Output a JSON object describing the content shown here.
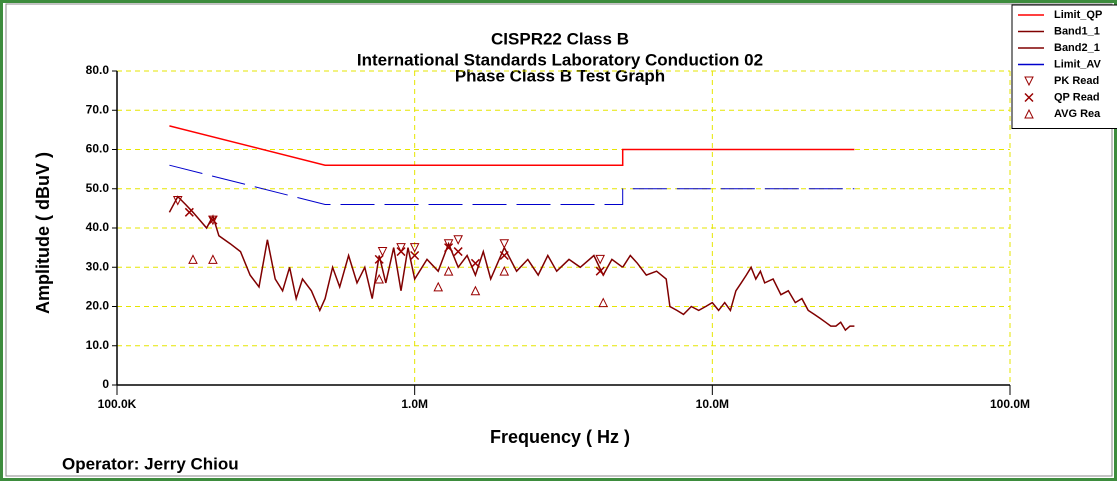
{
  "chart_data": {
    "type": "line",
    "title": [
      "CISPR22 Class B",
      "International Standards Laboratory Conduction 02",
      "Phase Class B Test Graph"
    ],
    "xlabel": "Frequency ( Hz )",
    "ylabel": "Amplitude ( dBuV )",
    "annotation": "Operator: Jerry Chiou",
    "xscale": "log",
    "xlim": [
      100000,
      100000000
    ],
    "xticks": [
      {
        "value": 100000,
        "label": "100.0K"
      },
      {
        "value": 1000000,
        "label": "1.0M"
      },
      {
        "value": 10000000,
        "label": "10.0M"
      },
      {
        "value": 100000000,
        "label": "100.0M"
      }
    ],
    "ylim": [
      0,
      80
    ],
    "yticks": [
      0,
      {
        "value": 10,
        "label": "10.0"
      },
      {
        "value": 20,
        "label": "20.0"
      },
      {
        "value": 30,
        "label": "30.0"
      },
      {
        "value": 40,
        "label": "40.0"
      },
      {
        "value": 50,
        "label": "50.0"
      },
      {
        "value": 60,
        "label": "60.0"
      },
      {
        "value": 70,
        "label": "70.0"
      },
      {
        "value": 80,
        "label": "80.0"
      }
    ],
    "grid": true,
    "legend": "upper right",
    "series": [
      {
        "name": "Limit_QP",
        "color": "#ff0000",
        "x": [
          150000,
          500000,
          5000000,
          5000000,
          30000000
        ],
        "values": [
          66,
          56,
          56,
          60,
          60
        ]
      },
      {
        "name": "Band1_1",
        "color": "#800000",
        "x": [
          150000,
          160000,
          170000,
          180000,
          200000,
          210000,
          220000,
          240000,
          260000,
          280000,
          300000,
          320000,
          340000,
          360000,
          380000,
          400000,
          420000,
          450000,
          480000,
          500000,
          530000,
          560000,
          600000,
          640000,
          680000,
          720000,
          760000,
          800000,
          850000,
          900000,
          950000,
          1000000,
          1100000,
          1200000,
          1300000,
          1400000,
          1500000,
          1600000,
          1700000,
          1800000,
          2000000,
          2200000,
          2400000,
          2600000,
          2800000,
          3000000,
          3300000,
          3600000,
          4000000,
          4300000,
          4600000,
          5000000
        ],
        "values": [
          44,
          48,
          46,
          44,
          40,
          43,
          38,
          36,
          34,
          28,
          25,
          37,
          27,
          24,
          30,
          22,
          27,
          24,
          19,
          22,
          30,
          25,
          33,
          26,
          30,
          22,
          33,
          26,
          35,
          24,
          35,
          27,
          32,
          29,
          36,
          30,
          33,
          28,
          34,
          27,
          35,
          29,
          32,
          28,
          33,
          29,
          32,
          30,
          33,
          28,
          32,
          30
        ]
      },
      {
        "name": "Band2_1",
        "color": "#800000",
        "x": [
          5000000,
          5300000,
          5600000,
          6000000,
          6500000,
          7000000,
          7200000,
          7600000,
          8000000,
          8500000,
          9000000,
          9500000,
          10000000,
          10500000,
          11000000,
          11500000,
          12000000,
          12500000,
          13000000,
          13500000,
          14000000,
          14500000,
          15000000,
          16000000,
          17000000,
          18000000,
          19000000,
          20000000,
          21000000,
          22000000,
          23000000,
          24000000,
          25000000,
          26000000,
          27000000,
          28000000,
          29000000,
          30000000
        ],
        "values": [
          30,
          33,
          31,
          28,
          29,
          27,
          20,
          19,
          18,
          20,
          19,
          20,
          21,
          19,
          21,
          19,
          24,
          26,
          28,
          30,
          27,
          29,
          26,
          27,
          23,
          24,
          21,
          22,
          19,
          18,
          17,
          16,
          15,
          15,
          16,
          14,
          15,
          15
        ]
      },
      {
        "name": "Limit_AV",
        "color": "#0000cc",
        "dashed": true,
        "x": [
          150000,
          500000,
          5000000,
          5000000,
          30000000
        ],
        "values": [
          56,
          46,
          46,
          50,
          50
        ]
      },
      {
        "name": "PK Read",
        "color": "#990000",
        "marker": "triangle-down",
        "x": [
          160000,
          210000,
          780000,
          900000,
          1000000,
          1300000,
          1400000,
          2000000,
          4200000
        ],
        "values": [
          47,
          42,
          34,
          35,
          35,
          36,
          37,
          36,
          32
        ]
      },
      {
        "name": "QP Read",
        "color": "#990000",
        "marker": "x",
        "x": [
          175000,
          210000,
          760000,
          900000,
          1000000,
          1300000,
          1400000,
          1600000,
          2000000,
          4200000
        ],
        "values": [
          44,
          42,
          32,
          34,
          33,
          35,
          34,
          31,
          33,
          29
        ]
      },
      {
        "name": "AVG Rea",
        "color": "#990000",
        "marker": "triangle-up",
        "x": [
          180000,
          210000,
          760000,
          1200000,
          1300000,
          1600000,
          2000000,
          4300000
        ],
        "values": [
          32,
          32,
          27,
          25,
          29,
          24,
          29,
          21
        ]
      }
    ]
  }
}
